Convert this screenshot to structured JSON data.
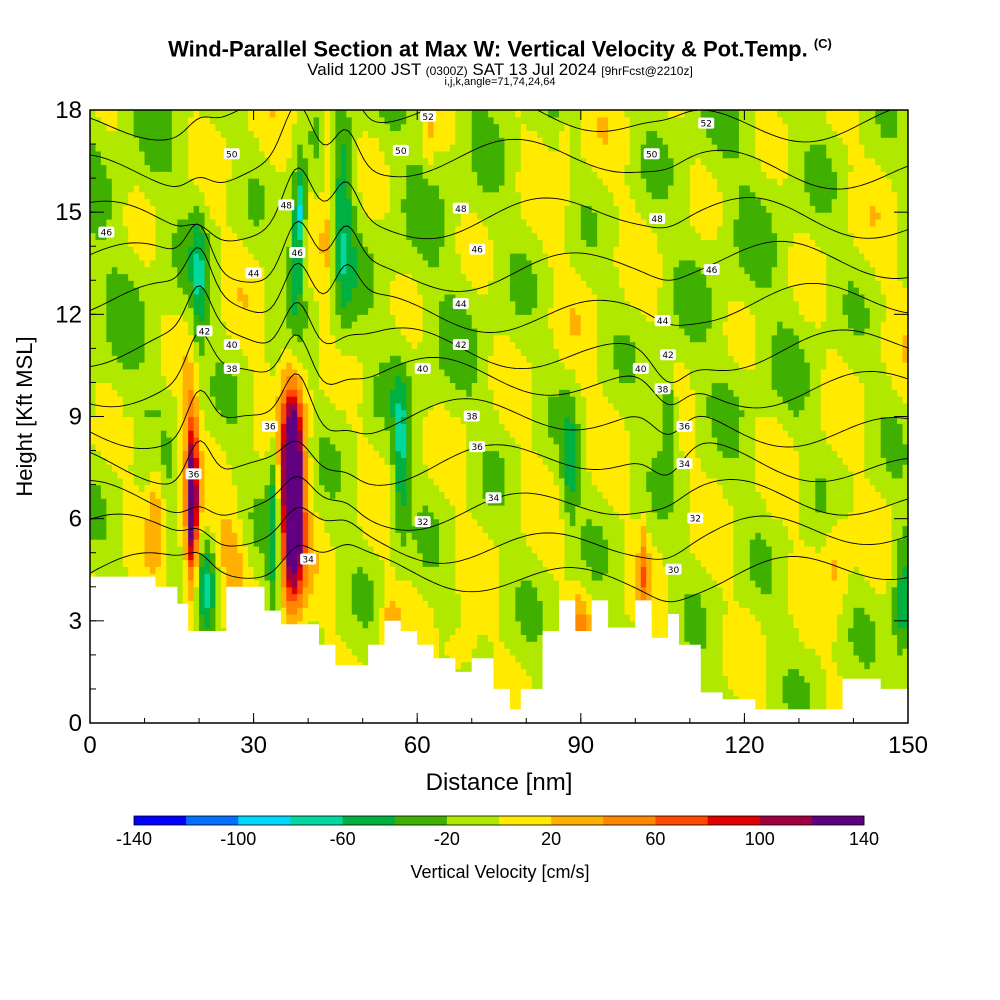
{
  "title": {
    "main": "Wind-Parallel Section at Max W: Vertical Velocity & Pot.Temp.",
    "mark": "(C)",
    "line2_a": "Valid 1200 JST",
    "line2_b": "(0300Z)",
    "line2_c": "SAT 13 Jul 2024",
    "line2_d": "[9hrFcst@2210z]",
    "line3": "i,j,k,angle=71,74,24,64"
  },
  "chart_data": {
    "type": "heatmap",
    "xlabel": "Distance [nm]",
    "ylabel": "Height [Kft MSL]",
    "xlim": [
      0,
      150
    ],
    "ylim": [
      0,
      18
    ],
    "x_ticks": [
      0,
      30,
      60,
      90,
      120,
      150
    ],
    "y_ticks": [
      0,
      3,
      6,
      9,
      12,
      15,
      18
    ],
    "colorbar": {
      "label": "Vertical Velocity [cm/s]",
      "tick_labels": [
        -140,
        -100,
        -60,
        -20,
        20,
        60,
        100,
        140
      ],
      "bounds": [
        -140,
        -120,
        -100,
        -80,
        -60,
        -40,
        -20,
        0,
        20,
        40,
        60,
        80,
        100,
        120,
        140
      ],
      "colors": [
        "#0000ff",
        "#0070ff",
        "#00d8ff",
        "#00d8a0",
        "#00b040",
        "#40b000",
        "#b0e800",
        "#ffea00",
        "#ffb000",
        "#ff8800",
        "#ff4800",
        "#e00000",
        "#a00040",
        "#600080"
      ]
    },
    "terrain_kft": [
      [
        0,
        4.3
      ],
      [
        8,
        4.3
      ],
      [
        12,
        4.0
      ],
      [
        16,
        3.5
      ],
      [
        18,
        2.7
      ],
      [
        22,
        2.7
      ],
      [
        25,
        4.0
      ],
      [
        29,
        4.0
      ],
      [
        32,
        3.3
      ],
      [
        35,
        2.9
      ],
      [
        38,
        2.9
      ],
      [
        42,
        2.3
      ],
      [
        45,
        1.7
      ],
      [
        48,
        1.7
      ],
      [
        51,
        2.3
      ],
      [
        54,
        3.0
      ],
      [
        57,
        2.7
      ],
      [
        60,
        2.3
      ],
      [
        63,
        1.9
      ],
      [
        67,
        1.5
      ],
      [
        70,
        1.9
      ],
      [
        74,
        1.0
      ],
      [
        77,
        0.4
      ],
      [
        79,
        1.0
      ],
      [
        83,
        2.7
      ],
      [
        86,
        3.6
      ],
      [
        89,
        2.7
      ],
      [
        92,
        3.6
      ],
      [
        95,
        2.8
      ],
      [
        100,
        3.6
      ],
      [
        103,
        2.5
      ],
      [
        106,
        3.2
      ],
      [
        108,
        2.3
      ],
      [
        112,
        0.9
      ],
      [
        116,
        0.7
      ],
      [
        121,
        0.7
      ],
      [
        122,
        0.4
      ],
      [
        128,
        0.4
      ],
      [
        136,
        0.4
      ],
      [
        138,
        1.3
      ],
      [
        143,
        1.3
      ],
      [
        145,
        1.0
      ],
      [
        150,
        1.0
      ]
    ],
    "theta_contour_levels": [
      30,
      32,
      34,
      36,
      38,
      40,
      42,
      44,
      46,
      48,
      50,
      52
    ],
    "theta_labels": [
      {
        "text": "52",
        "x": 62,
        "y": 17.8
      },
      {
        "text": "52",
        "x": 113,
        "y": 17.6
      },
      {
        "text": "50",
        "x": 26,
        "y": 16.7
      },
      {
        "text": "50",
        "x": 57,
        "y": 16.8
      },
      {
        "text": "50",
        "x": 103,
        "y": 16.7
      },
      {
        "text": "48",
        "x": 36,
        "y": 15.2
      },
      {
        "text": "48",
        "x": 68,
        "y": 15.1
      },
      {
        "text": "48",
        "x": 104,
        "y": 14.8
      },
      {
        "text": "46",
        "x": 3,
        "y": 14.4
      },
      {
        "text": "46",
        "x": 38,
        "y": 13.8
      },
      {
        "text": "46",
        "x": 71,
        "y": 13.9
      },
      {
        "text": "46",
        "x": 114,
        "y": 13.3
      },
      {
        "text": "44",
        "x": 30,
        "y": 13.2
      },
      {
        "text": "44",
        "x": 68,
        "y": 12.3
      },
      {
        "text": "44",
        "x": 105,
        "y": 11.8
      },
      {
        "text": "42",
        "x": 21,
        "y": 11.5
      },
      {
        "text": "42",
        "x": 68,
        "y": 11.1
      },
      {
        "text": "42",
        "x": 106,
        "y": 10.8
      },
      {
        "text": "40",
        "x": 26,
        "y": 11.1
      },
      {
        "text": "40",
        "x": 61,
        "y": 10.4
      },
      {
        "text": "40",
        "x": 101,
        "y": 10.4
      },
      {
        "text": "38",
        "x": 26,
        "y": 10.4
      },
      {
        "text": "38",
        "x": 70,
        "y": 9.0
      },
      {
        "text": "38",
        "x": 105,
        "y": 9.8
      },
      {
        "text": "36",
        "x": 33,
        "y": 8.7
      },
      {
        "text": "36",
        "x": 71,
        "y": 8.1
      },
      {
        "text": "36",
        "x": 109,
        "y": 8.7
      },
      {
        "text": "36",
        "x": 19,
        "y": 7.3
      },
      {
        "text": "34",
        "x": 40,
        "y": 4.8
      },
      {
        "text": "34",
        "x": 74,
        "y": 6.6
      },
      {
        "text": "34",
        "x": 109,
        "y": 7.6
      },
      {
        "text": "32",
        "x": 61,
        "y": 5.9
      },
      {
        "text": "32",
        "x": 111,
        "y": 6.0
      },
      {
        "text": "30",
        "x": 107,
        "y": 4.5
      }
    ],
    "w_features": [
      {
        "x": 18.5,
        "y": 6.7,
        "rx": 1.6,
        "ry": 3.2,
        "w": 70
      },
      {
        "x": 18.8,
        "y": 6.5,
        "rx": 0.8,
        "ry": 2.2,
        "w": 100
      },
      {
        "x": 21.5,
        "y": 4.0,
        "rx": 1.5,
        "ry": 1.4,
        "w": -50
      },
      {
        "x": 37.0,
        "y": 6.8,
        "rx": 2.6,
        "ry": 3.6,
        "w": 80
      },
      {
        "x": 37.2,
        "y": 6.6,
        "rx": 1.9,
        "ry": 2.8,
        "w": 105
      },
      {
        "x": 37.3,
        "y": 6.8,
        "rx": 1.1,
        "ry": 1.7,
        "w": 125
      },
      {
        "x": 33.8,
        "y": 6.0,
        "rx": 1.2,
        "ry": 3.3,
        "w": -55
      },
      {
        "x": 20.0,
        "y": 12.9,
        "rx": 1.4,
        "ry": 2.2,
        "w": -45
      },
      {
        "x": 37.8,
        "y": 13.5,
        "rx": 1.8,
        "ry": 2.2,
        "w": -50
      },
      {
        "x": 38.5,
        "y": 15.1,
        "rx": 1.0,
        "ry": 1.3,
        "w": -70
      },
      {
        "x": 46.5,
        "y": 14.6,
        "rx": 2.0,
        "ry": 3.5,
        "w": -45
      },
      {
        "x": 57.0,
        "y": 7.7,
        "rx": 1.4,
        "ry": 2.3,
        "w": -55
      },
      {
        "x": 88.0,
        "y": 7.5,
        "rx": 1.4,
        "ry": 1.6,
        "w": -45
      },
      {
        "x": 106.0,
        "y": 9.2,
        "rx": 1.4,
        "ry": 1.2,
        "w": -50
      },
      {
        "x": 149.0,
        "y": 3.3,
        "rx": 1.8,
        "ry": 2.2,
        "w": -50
      },
      {
        "x": 12.0,
        "y": 6.4,
        "rx": 1.4,
        "ry": 1.6,
        "w": 35
      },
      {
        "x": 26.0,
        "y": 4.9,
        "rx": 2.5,
        "ry": 1.2,
        "w": 35
      },
      {
        "x": 43.8,
        "y": 16.8,
        "rx": 1.2,
        "ry": 1.4,
        "w": 45
      },
      {
        "x": 43.5,
        "y": 14.0,
        "rx": 1.0,
        "ry": 1.2,
        "w": 30
      },
      {
        "x": 55.0,
        "y": 3.0,
        "rx": 1.8,
        "ry": 1.0,
        "w": 30
      },
      {
        "x": 68.0,
        "y": 2.1,
        "rx": 2.8,
        "ry": 0.8,
        "w": 35
      },
      {
        "x": 90.0,
        "y": 3.1,
        "rx": 1.8,
        "ry": 0.9,
        "w": 35
      },
      {
        "x": 101.5,
        "y": 4.4,
        "rx": 0.9,
        "ry": 1.6,
        "w": 45
      },
      {
        "x": 137.0,
        "y": 5.0,
        "rx": 2.5,
        "ry": 1.6,
        "w": 30
      },
      {
        "x": 87.0,
        "y": 16.8,
        "rx": 1.0,
        "ry": 1.3,
        "w": 25
      },
      {
        "x": 62.0,
        "y": 17.3,
        "rx": 1.0,
        "ry": 1.0,
        "w": 25
      }
    ]
  }
}
